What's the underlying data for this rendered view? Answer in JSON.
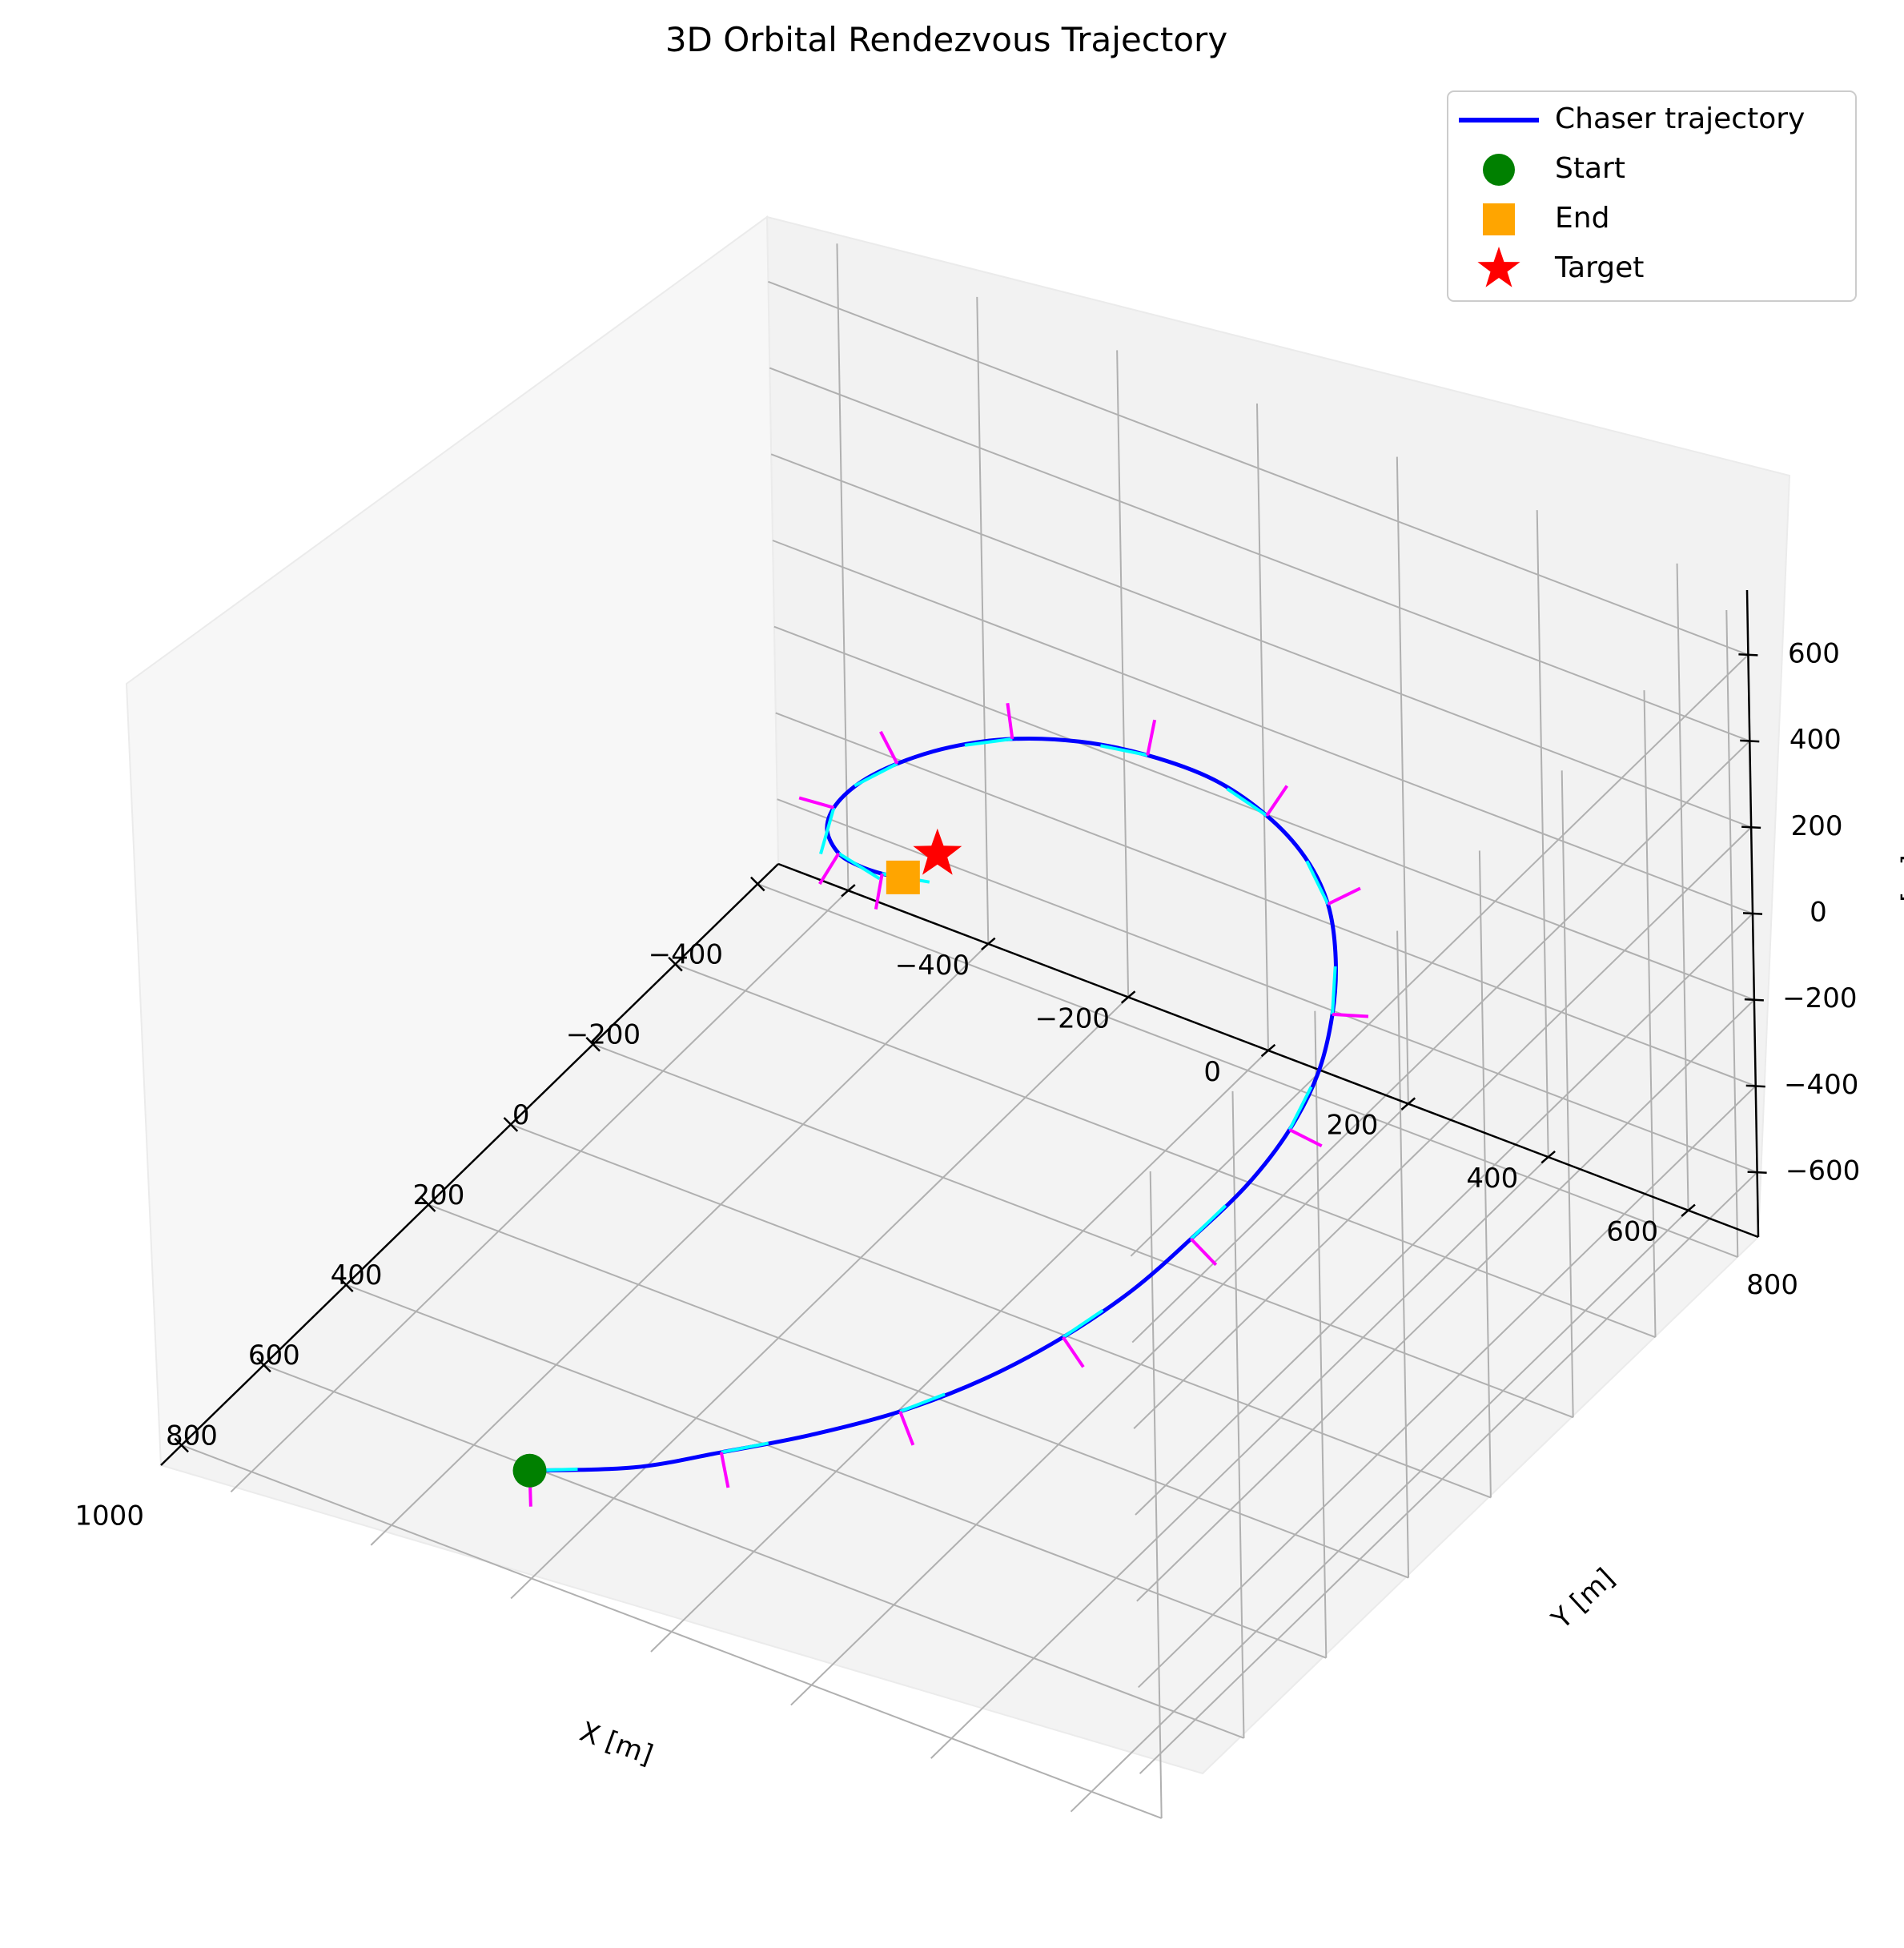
{
  "chart_data": {
    "type": "line3d",
    "title": "3D Orbital Rendezvous Trajectory",
    "xlabel": "X [m]",
    "ylabel": "Y [m]",
    "zlabel": "Z [m]",
    "xlim": [
      -450,
      1050
    ],
    "ylim": [
      -500,
      900
    ],
    "zlim": [
      -750,
      750
    ],
    "xticks": [
      -400,
      -200,
      0,
      200,
      400,
      600,
      800,
      1000
    ],
    "yticks": [
      -400,
      -200,
      0,
      200,
      400,
      600,
      800
    ],
    "zticks": [
      -600,
      -400,
      -200,
      0,
      200,
      400,
      600
    ],
    "grid": true,
    "legend_position": "top-right",
    "colors": {
      "trajectory": "#0000ff",
      "start": "#008000",
      "end": "#ffa500",
      "target": "#ff0000",
      "velocity_arrows": "#00ffff",
      "thrust_arrows": "#ff00ff"
    },
    "legend": [
      {
        "label": "Chaser trajectory",
        "marker": "line",
        "color": "#0000ff"
      },
      {
        "label": "Start",
        "marker": "circle",
        "color": "#008000"
      },
      {
        "label": "End",
        "marker": "square",
        "color": "#ffa500"
      },
      {
        "label": "Target",
        "marker": "star",
        "color": "#ff0000"
      }
    ],
    "trajectory": {
      "name": "Chaser trajectory",
      "x": [
        1000,
        1000,
        990,
        960,
        910,
        840,
        750,
        650,
        540,
        420,
        300,
        180,
        60,
        -50,
        -150,
        -230,
        -290,
        -330,
        -340,
        -330,
        -300,
        -250,
        -190,
        -130,
        -70,
        -20,
        20,
        40,
        50,
        50
      ],
      "y": [
        0,
        150,
        270,
        380,
        480,
        560,
        620,
        660,
        680,
        690,
        680,
        650,
        600,
        540,
        470,
        390,
        300,
        200,
        100,
        10,
        -70,
        -130,
        -170,
        -190,
        -190,
        -170,
        -130,
        -90,
        -50,
        -20
      ],
      "z": [
        -500,
        -400,
        -300,
        -220,
        -150,
        -90,
        -40,
        0,
        30,
        50,
        60,
        60,
        55,
        45,
        35,
        20,
        5,
        -10,
        -25,
        -40,
        -55,
        -65,
        -72,
        -75,
        -75,
        -70,
        -60,
        -45,
        -30,
        -20
      ]
    },
    "start": {
      "x": 1000,
      "y": 0,
      "z": -500
    },
    "end": {
      "x": 50,
      "y": -20,
      "z": -20
    },
    "target": {
      "x": 0,
      "y": 0,
      "z": 0
    }
  }
}
